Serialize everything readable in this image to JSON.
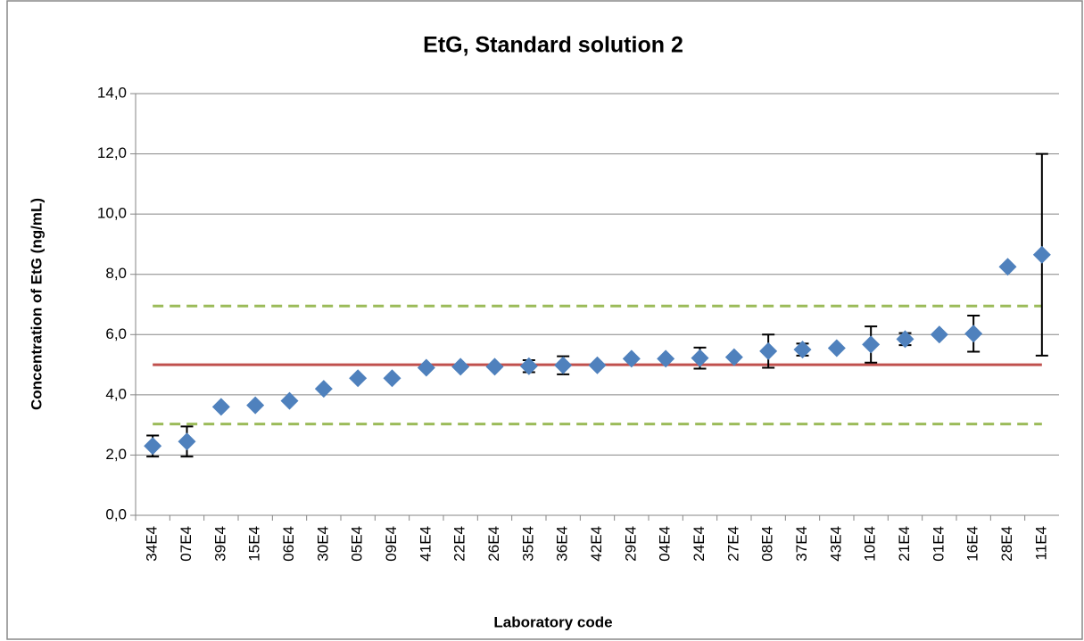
{
  "chart_data": {
    "type": "scatter",
    "title": "EtG, Standard  solution 2",
    "xlabel": "Laboratory code",
    "ylabel": "Concentration of EtG (ng/mL)",
    "categories": [
      "34E4",
      "07E4",
      "39E4",
      "15E4",
      "06E4",
      "30E4",
      "05E4",
      "09E4",
      "41E4",
      "22E4",
      "26E4",
      "35E4",
      "36E4",
      "42E4",
      "29E4",
      "04E4",
      "24E4",
      "27E4",
      "08E4",
      "37E4",
      "43E4",
      "10E4",
      "21E4",
      "01E4",
      "16E4",
      "28E4",
      "11E4"
    ],
    "values": [
      2.3,
      2.45,
      3.6,
      3.65,
      3.8,
      4.2,
      4.55,
      4.55,
      4.9,
      4.93,
      4.93,
      4.95,
      4.98,
      4.98,
      5.2,
      5.2,
      5.22,
      5.25,
      5.45,
      5.5,
      5.55,
      5.67,
      5.85,
      6.0,
      6.03,
      8.25,
      8.65
    ],
    "errors": [
      0.35,
      0.5,
      null,
      null,
      null,
      null,
      null,
      null,
      null,
      null,
      null,
      0.2,
      0.3,
      null,
      null,
      null,
      0.35,
      null,
      0.55,
      0.2,
      null,
      0.6,
      0.2,
      null,
      0.6,
      null,
      3.35
    ],
    "color": "#4f81bd",
    "reference_lines": [
      {
        "value": 5.0,
        "color": "#c0504d",
        "dashed": false
      },
      {
        "value": 3.03,
        "color": "#9bbb59",
        "dashed": true
      },
      {
        "value": 6.95,
        "color": "#9bbb59",
        "dashed": true
      }
    ],
    "ylim": [
      0,
      14
    ],
    "yticks": [
      {
        "value": 0,
        "label": "0,0"
      },
      {
        "value": 2,
        "label": "2,0"
      },
      {
        "value": 4,
        "label": "4,0"
      },
      {
        "value": 6,
        "label": "6,0"
      },
      {
        "value": 8,
        "label": "8,0"
      },
      {
        "value": 10,
        "label": "10,0"
      },
      {
        "value": 12,
        "label": "12,0"
      },
      {
        "value": 14,
        "label": "14,0"
      }
    ],
    "grid": true
  }
}
